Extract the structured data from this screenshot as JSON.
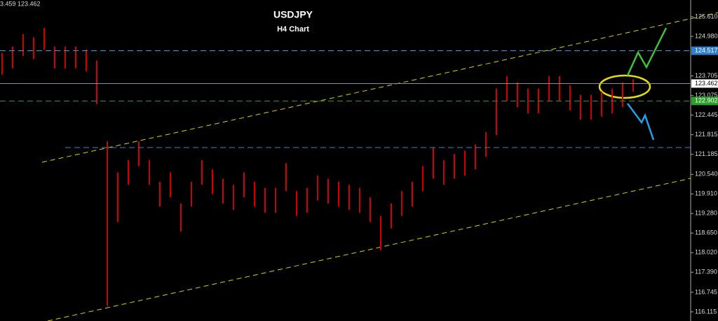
{
  "chart_data": {
    "type": "hlbar",
    "title": "USDJPY",
    "subtitle": "H4 Chart",
    "header_text": "3.459 123.462",
    "ylim": [
      115.82,
      126.15
    ],
    "yticks": [
      {
        "value": 125.61,
        "label": "125.610"
      },
      {
        "value": 124.98,
        "label": "124.980"
      },
      {
        "value": 123.705,
        "label": "123.705"
      },
      {
        "value": 123.075,
        "label": "123.075"
      },
      {
        "value": 122.445,
        "label": "122.445"
      },
      {
        "value": 121.815,
        "label": "121.815"
      },
      {
        "value": 121.185,
        "label": "121.185"
      },
      {
        "value": 120.54,
        "label": "120.540"
      },
      {
        "value": 119.91,
        "label": "119.910"
      },
      {
        "value": 119.28,
        "label": "119.280"
      },
      {
        "value": 118.65,
        "label": "118.650"
      },
      {
        "value": 118.02,
        "label": "118.020"
      },
      {
        "value": 117.39,
        "label": "117.390"
      },
      {
        "value": 116.745,
        "label": "116.745"
      },
      {
        "value": 116.115,
        "label": "116.115"
      }
    ],
    "color": "#d40000",
    "high": [
      124.45,
      124.65,
      125.05,
      124.95,
      125.25,
      124.65,
      124.65,
      124.65,
      124.55,
      124.2,
      121.6,
      120.6,
      121.0,
      121.6,
      121.0,
      120.3,
      120.6,
      119.6,
      120.3,
      121.0,
      120.7,
      120.4,
      120.2,
      120.6,
      120.3,
      120.1,
      120.1,
      120.9,
      120.0,
      120.1,
      120.5,
      120.4,
      120.3,
      120.2,
      120.1,
      119.8,
      119.2,
      119.6,
      120.0,
      120.3,
      120.8,
      121.4,
      121.0,
      121.2,
      121.3,
      121.5,
      121.9,
      123.3,
      123.7,
      123.5,
      123.3,
      123.3,
      123.7,
      123.7,
      123.4,
      123.1,
      123.1,
      123.2,
      123.3,
      123.5,
      123.6
    ],
    "low": [
      123.75,
      123.95,
      124.35,
      124.25,
      124.55,
      123.95,
      123.95,
      123.95,
      123.85,
      122.8,
      116.3,
      119.0,
      120.2,
      120.8,
      120.2,
      119.5,
      119.8,
      118.7,
      119.5,
      120.2,
      119.9,
      119.6,
      119.4,
      119.8,
      119.5,
      119.3,
      119.3,
      120.0,
      119.2,
      119.3,
      119.7,
      119.6,
      119.5,
      119.4,
      119.3,
      119.0,
      118.1,
      118.8,
      119.2,
      119.5,
      120.0,
      120.4,
      120.2,
      120.4,
      120.5,
      120.7,
      121.1,
      121.8,
      122.9,
      122.7,
      122.5,
      122.5,
      122.9,
      122.9,
      122.6,
      122.3,
      122.3,
      122.4,
      122.5,
      122.7,
      123.2
    ],
    "levels": [
      {
        "value": 124.517,
        "label": "124.517",
        "color": "#3f9be0",
        "dash": true,
        "box": "#2f7fd0"
      },
      {
        "value": 123.462,
        "label": "123.462",
        "color": "#8a8fa8",
        "dash": false,
        "box": "#ffffff"
      },
      {
        "value": 122.902,
        "label": "122.902",
        "color": "#2aa02a",
        "dash": true,
        "box": "#2aa02a"
      },
      {
        "value": 121.4,
        "color": "#3a86c8",
        "dash": true
      }
    ]
  }
}
